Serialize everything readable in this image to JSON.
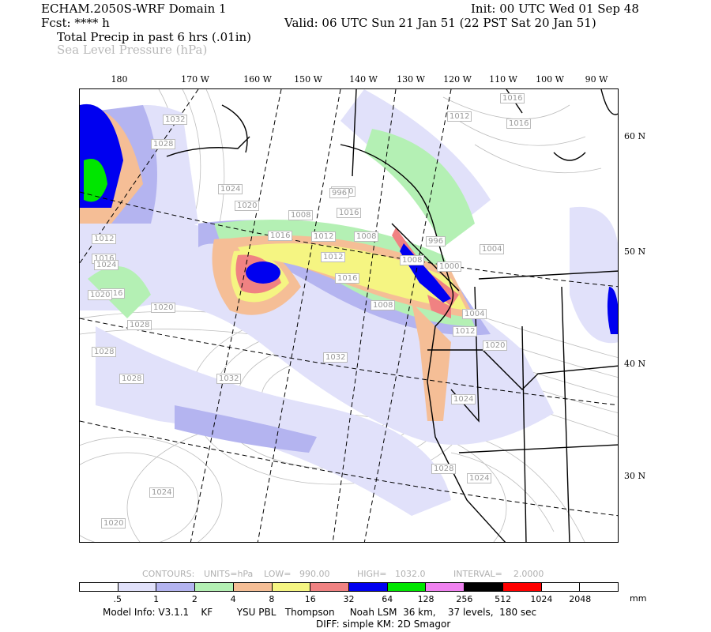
{
  "header": {
    "model": "ECHAM.2050S-WRF Domain 1",
    "init": "Init: 00 UTC Wed 01 Sep 48",
    "fcst": "Fcst: **** h",
    "valid": "Valid: 06 UTC Sun 21 Jan 51 (22 PST Sat 20 Jan 51)",
    "field1": "Total Precip in past 6 hrs (.01in)",
    "field2": "Sea Level Pressure (hPa)"
  },
  "map": {
    "longitude_labels": [
      "180",
      "170 W",
      "160 W",
      "150 W",
      "140 W",
      "130 W",
      "120 W",
      "110 W",
      "100 W",
      "90 W"
    ],
    "latitude_labels": [
      "60 N",
      "50 N",
      "40 N",
      "30 N"
    ],
    "isobar_labels": [
      "1016",
      "1012",
      "1016",
      "1032",
      "1028",
      "1024",
      "1020",
      "1016",
      "1008",
      "1012",
      "1016",
      "1000",
      "1020",
      "1012",
      "1016",
      "996",
      "1004",
      "1008",
      "1012",
      "1016",
      "1008",
      "1000",
      "996",
      "1004",
      "1008",
      "1012",
      "1016",
      "1020",
      "1032",
      "1032",
      "1028",
      "1028",
      "1024",
      "1024",
      "1020",
      "1028",
      "1024",
      "1028",
      "1020",
      "1024"
    ]
  },
  "contours_line": {
    "contours": "CONTOURS:",
    "units": "UNITS=hPa",
    "low": "LOW=   990.00",
    "high": "HIGH=   1032.0",
    "interval": "INTERVAL=    2.0000"
  },
  "legend": {
    "colors": [
      "#ffffff",
      "#e1e1fa",
      "#b4b4f0",
      "#b4f0b4",
      "#f5be96",
      "#f5f582",
      "#f08282",
      "#0000f0",
      "#00e600",
      "#f082f0",
      "#000000",
      "#ff0000",
      "#ffffff",
      "#ffffff"
    ],
    "labels": [
      ".5",
      "1",
      "2",
      "4",
      "8",
      "16",
      "32",
      "64",
      "128",
      "256",
      "512",
      "1024",
      "2048"
    ],
    "unit": "mm"
  },
  "footer": {
    "line1": "Model Info: V3.1.1    KF        YSU PBL   Thompson     Noah LSM  36 km,    37 levels,  180 sec",
    "line2": "DIFF: simple KM: 2D Smagor"
  }
}
